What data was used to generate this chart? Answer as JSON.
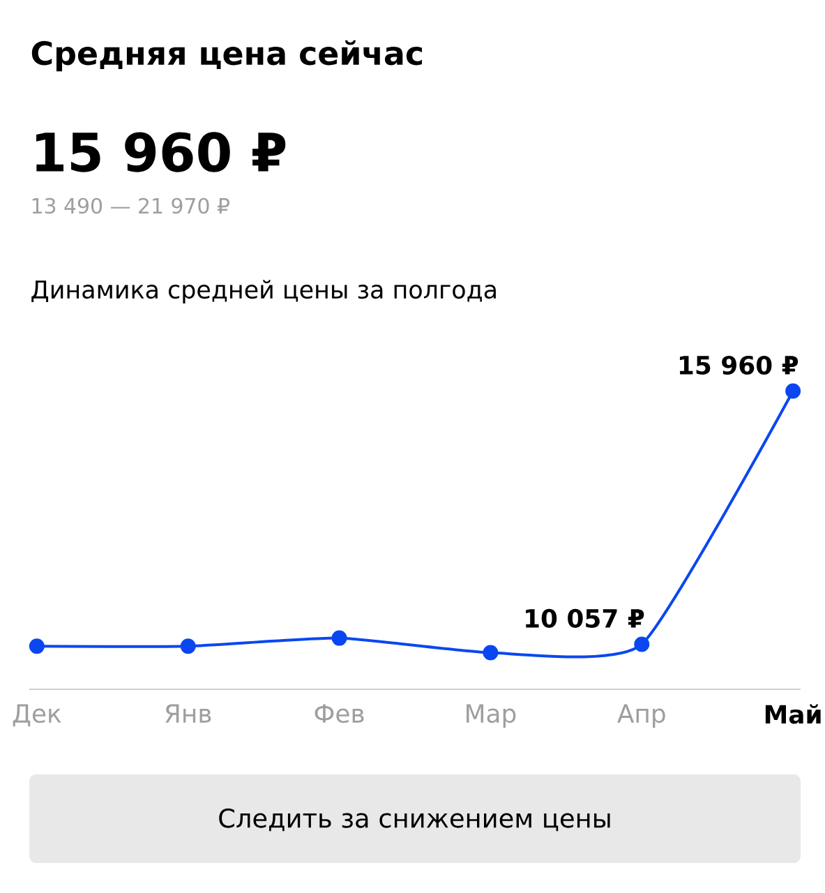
{
  "chart_data": {
    "type": "line",
    "title": "Средняя цена сейчас",
    "annotations": [
      "15 960 ₽",
      "13 490 — 21 970 ₽",
      "Динамика средней цены за полгода",
      "Следить за снижением цены"
    ],
    "categories": [
      "Дек",
      "Янв",
      "Фев",
      "Мар",
      "Апр",
      "Май"
    ],
    "series": [
      {
        "color": "#0a47f0",
        "values": [
          10010,
          10010,
          10200,
          9860,
          10057,
          15960
        ],
        "value_labels": [
          null,
          null,
          null,
          null,
          "10 057 ₽",
          "15 960 ₽"
        ]
      }
    ],
    "marker": "circle",
    "line_style": "solid",
    "grid": false,
    "legend": false
  }
}
